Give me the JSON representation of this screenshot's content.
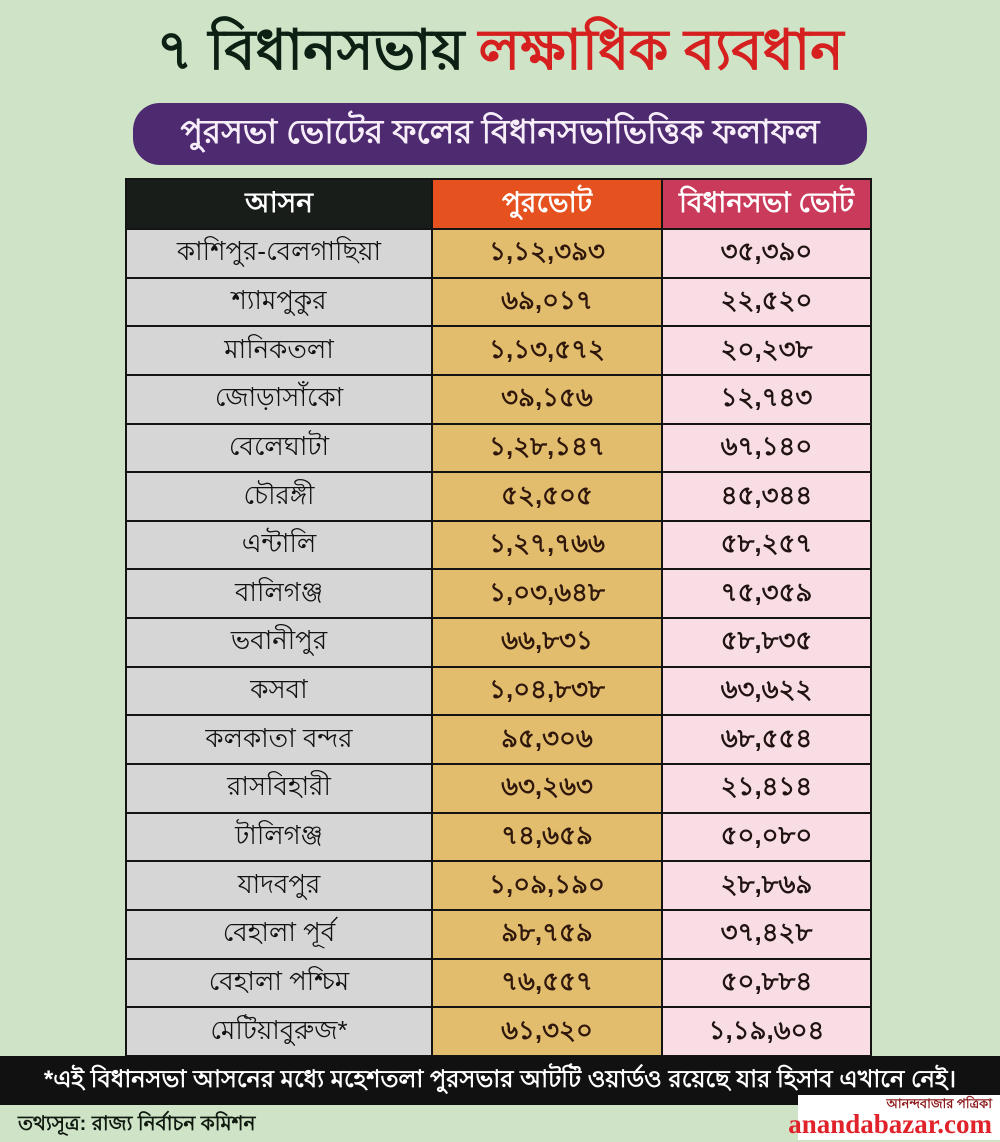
{
  "page": {
    "background_color": "#cfe3c7",
    "accent_red": "#d6201f",
    "pill_purple": "#4e2b70",
    "header_orange": "#e5511f",
    "header_crimson": "#ca3a5b"
  },
  "title": {
    "dark_part": "৭ বিধানসভায়",
    "red_part": "লক্ষাধিক ব্যবধান"
  },
  "subtitle": {
    "text": "পুরসভা ভোটের ফলের বিধানসভাভিত্তিক ফলাফল"
  },
  "table": {
    "headers": [
      "আসন",
      "পুরভোট",
      "বিধানসভা ভোট"
    ],
    "cell_names": [
      "seat-name-cell",
      "municipal-vote-cell",
      "assembly-vote-cell"
    ],
    "rows": [
      {
        "cells": [
          "কাশিপুর-বেলগাছিয়া",
          "১,১২,৩৯৩",
          "৩৫,৩৯০"
        ]
      },
      {
        "cells": [
          "শ্যামপুকুর",
          "৬৯,০১৭",
          "২২,৫২০"
        ]
      },
      {
        "cells": [
          "মানিকতলা",
          "১,১৩,৫৭২",
          "২০,২৩৮"
        ]
      },
      {
        "cells": [
          "জোড়াসাঁকো",
          "৩৯,১৫৬",
          "১২,৭৪৩"
        ]
      },
      {
        "cells": [
          "বেলেঘাটা",
          "১,২৮,১৪৭",
          "৬৭,১৪০"
        ]
      },
      {
        "cells": [
          "চৌরঙ্গী",
          "৫২,৫০৫",
          "৪৫,৩৪৪"
        ]
      },
      {
        "cells": [
          "এন্টালি",
          "১,২৭,৭৬৬",
          "৫৮,২৫৭"
        ]
      },
      {
        "cells": [
          "বালিগঞ্জ",
          "১,০৩,৬৪৮",
          "৭৫,৩৫৯"
        ]
      },
      {
        "cells": [
          "ভবানীপুর",
          "৬৬,৮৩১",
          "৫৮,৮৩৫"
        ]
      },
      {
        "cells": [
          "কসবা",
          "১,০৪,৮৩৮",
          "৬৩,৬২২"
        ]
      },
      {
        "cells": [
          "কলকাতা বন্দর",
          "৯৫,৩০৬",
          "৬৮,৫৫৪"
        ]
      },
      {
        "cells": [
          "রাসবিহারী",
          "৬৩,২৬৩",
          "২১,৪১৪"
        ]
      },
      {
        "cells": [
          "টালিগঞ্জ",
          "৭৪,৬৫৯",
          "৫০,০৮০"
        ]
      },
      {
        "cells": [
          "যাদবপুর",
          "১,০৯,১৯০",
          "২৮,৮৬৯"
        ]
      },
      {
        "cells": [
          "বেহালা পূর্ব",
          "৯৮,৭৫৯",
          "৩৭,৪২৮"
        ]
      },
      {
        "cells": [
          "বেহালা পশ্চিম",
          "৭৬,৫৫৭",
          "৫০,৮৮৪"
        ]
      },
      {
        "cells": [
          "মেটিয়াবুরুজ*",
          "৬১,৩২০",
          "১,১৯,৬০৪"
        ]
      }
    ]
  },
  "chart_data": {
    "type": "table",
    "title": "৭ বিধানসভায় লক্ষাধিক ব্যবধান",
    "subtitle": "পুরসভা ভোটের ফলের বিধানসভাভিত্তিক ফলাফল",
    "columns": [
      "আসন",
      "পুরভোট",
      "বিধানসভা ভোট"
    ],
    "categories": [
      "কাশিপুর-বেলগাছিয়া",
      "শ্যামপুকুর",
      "মানিকতলা",
      "জোড়াসাঁকো",
      "বেলেঘাটা",
      "চৌরঙ্গী",
      "এন্টালি",
      "বালিগঞ্জ",
      "ভবানীপুর",
      "কসবা",
      "কলকাতা বন্দর",
      "রাসবিহারী",
      "টালিগঞ্জ",
      "যাদবপুর",
      "বেহালা পূর্ব",
      "বেহালা পশ্চিম",
      "মেটিয়াবুরুজ*"
    ],
    "series": [
      {
        "name": "পুরভোট",
        "values": [
          112393,
          69017,
          113572,
          39156,
          128147,
          52505,
          127766,
          103648,
          66831,
          104838,
          95306,
          63263,
          74659,
          109190,
          98759,
          76557,
          61320
        ]
      },
      {
        "name": "বিধানসভা ভোট",
        "values": [
          35390,
          22520,
          20238,
          12743,
          67140,
          45344,
          58257,
          75359,
          58835,
          63622,
          68554,
          21414,
          50080,
          28869,
          37428,
          50884,
          119604
        ]
      }
    ],
    "annotations": [
      "*এই বিধানসভা আসনের মধ্যে মহেশতলা পুরসভার আটটি ওয়ার্ডও রয়েছে যার হিসাব এখানে নেই।"
    ],
    "source": "তথ্যসূত্র: রাজ্য নির্বাচন কমিশন"
  },
  "footnote": {
    "text": "*এই বিধানসভা আসনের মধ্যে মহেশতলা পুরসভার আটটি ওয়ার্ডও রয়েছে যার হিসাব এখানে নেই।"
  },
  "source": {
    "text": "তথ্যসূত্র: রাজ্য নির্বাচন কমিশন"
  },
  "logo": {
    "masthead": "আনন্দবাজার পত্রিকা",
    "domain_text": "anandabazar.com"
  }
}
